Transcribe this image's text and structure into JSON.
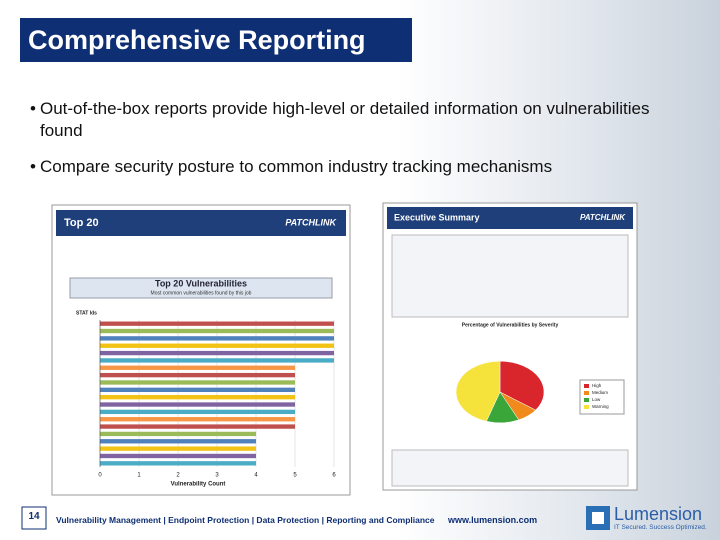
{
  "header": {
    "title": "Comprehensive Reporting"
  },
  "bullets": [
    "Out-of-the-box reports provide high-level or detailed information on vulnerabilities found",
    "Compare security posture to common industry tracking mechanisms"
  ],
  "report_left": {
    "header": "Top 20",
    "brand": "PATCHLINK",
    "chart_title": "Top 20 Vulnerabilities",
    "chart_subtitle": "Most common vulnerabilities found by this job",
    "y_label": "STAT Ids",
    "x_label": "Vulnerability Count",
    "xlim": [
      0,
      6
    ],
    "xticks": [
      0,
      1,
      2,
      3,
      4,
      5,
      6
    ],
    "values": [
      6,
      6,
      6,
      6,
      6,
      6,
      5,
      5,
      5,
      5,
      5,
      5,
      5,
      5,
      5,
      4,
      4,
      4,
      4,
      4
    ],
    "colors": [
      "#c0504d",
      "#9bbb59",
      "#4f81bd",
      "#f2c314",
      "#8064a2",
      "#4bacc6",
      "#f79646",
      "#c0504d",
      "#9bbb59",
      "#4f81bd",
      "#f2c314",
      "#8064a2",
      "#4bacc6",
      "#f79646",
      "#c0504d",
      "#9bbb59",
      "#4f81bd",
      "#f2c314",
      "#8064a2",
      "#4bacc6"
    ]
  },
  "report_right": {
    "header": "Executive Summary",
    "brand": "PATCHLINK",
    "chart_title": "Percentage of Vulnerabilities by Severity",
    "slices": [
      {
        "name": "High",
        "color": "#d9262c",
        "value": 35
      },
      {
        "name": "Medium",
        "color": "#f08a1c",
        "value": 8
      },
      {
        "name": "Low",
        "color": "#3aa63a",
        "value": 12
      },
      {
        "name": "Warning",
        "color": "#f5e23a",
        "value": 45
      }
    ]
  },
  "footer": {
    "page": "14",
    "tagline": "Vulnerability Management | Endpoint Protection | Data Protection | Reporting and Compliance",
    "url": "www.lumension.com",
    "logo": "Lumension",
    "slogan": "IT Secured. Success Optimized."
  }
}
